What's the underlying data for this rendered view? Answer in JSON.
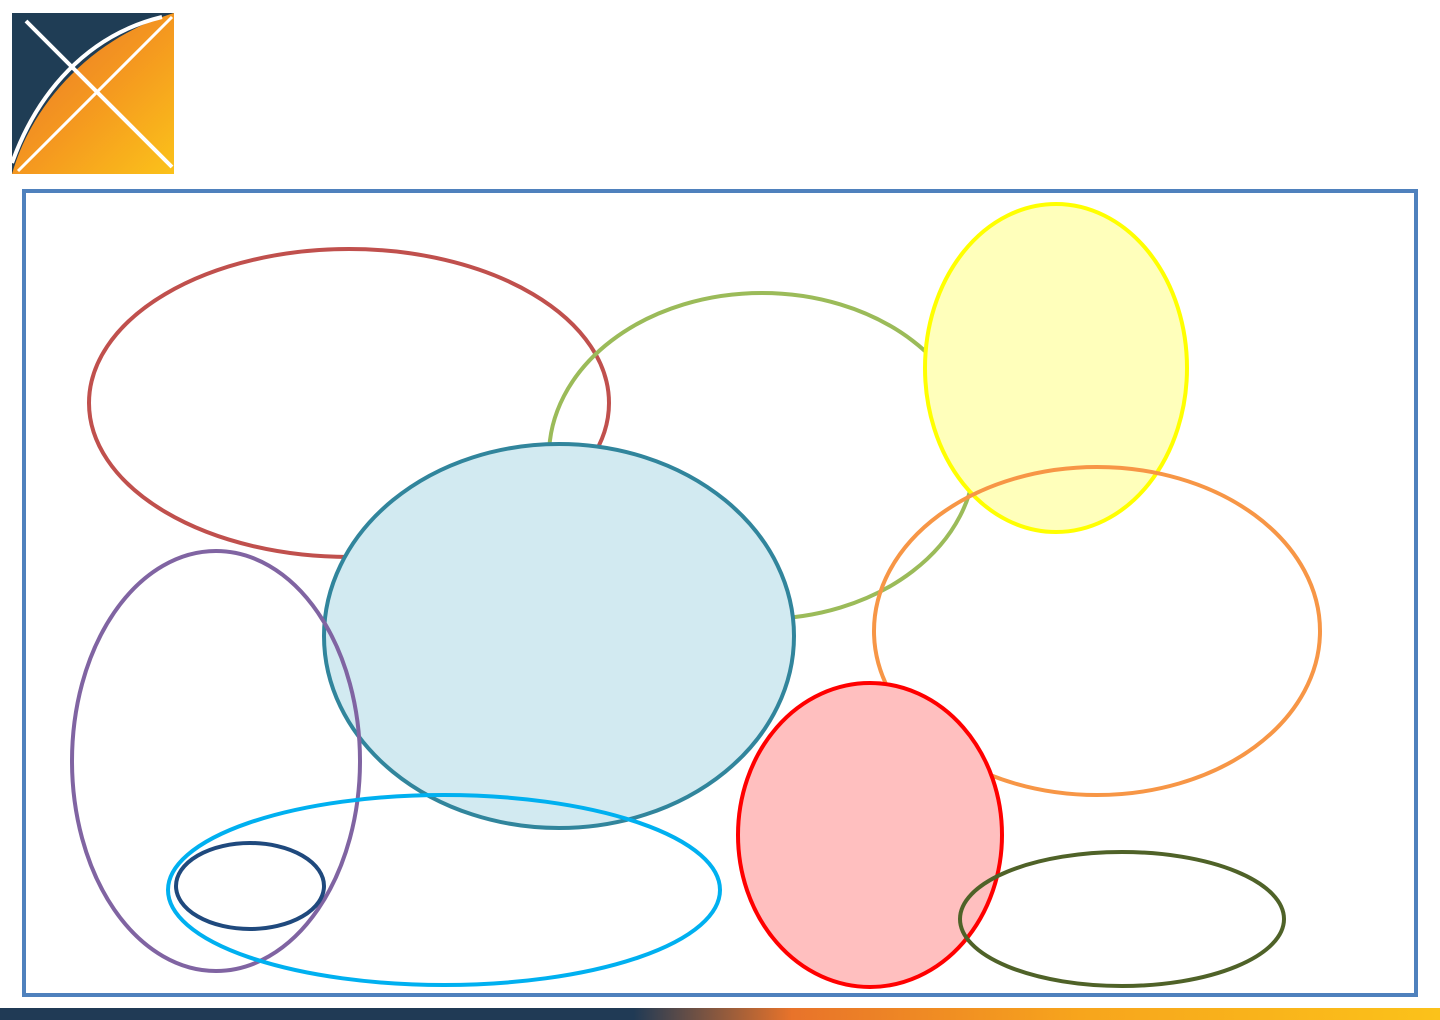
{
  "logo": {
    "icon": "crossed-x-logo-icon"
  },
  "frame": {
    "border_color": "#4f81bd"
  },
  "ellipses": [
    {
      "name": "ellipse-dark-red",
      "stroke": "#c0504d",
      "fill": "none"
    },
    {
      "name": "ellipse-light-green",
      "stroke": "#9bbb59",
      "fill": "none"
    },
    {
      "name": "ellipse-yellow",
      "stroke": "#ffff00",
      "fill": "#ffffbb"
    },
    {
      "name": "ellipse-teal",
      "stroke": "#31859c",
      "fill": "#d2eaf1"
    },
    {
      "name": "ellipse-orange",
      "stroke": "#f79646",
      "fill": "none"
    },
    {
      "name": "ellipse-purple",
      "stroke": "#8064a2",
      "fill": "none"
    },
    {
      "name": "ellipse-cyan",
      "stroke": "#00b0f0",
      "fill": "none"
    },
    {
      "name": "ellipse-navy",
      "stroke": "#1f497d",
      "fill": "none"
    },
    {
      "name": "ellipse-red",
      "stroke": "#ff0000",
      "fill": "#ffbfbf"
    },
    {
      "name": "ellipse-dark-olive",
      "stroke": "#4f6228",
      "fill": "none"
    }
  ],
  "footer": {
    "gradient": [
      "#203a55",
      "#203a55",
      "#e8732a",
      "#f7a51c",
      "#fbc21a"
    ]
  }
}
